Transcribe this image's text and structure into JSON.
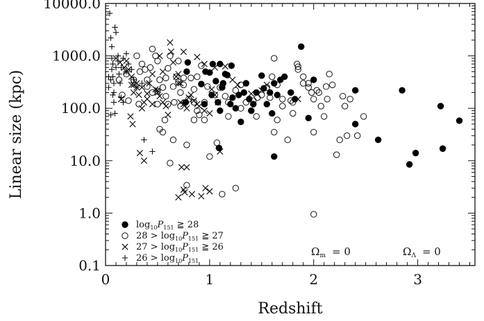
{
  "chart_data": {
    "type": "scatter",
    "title": "",
    "xlabel": "Redshift",
    "ylabel": "Linear size (kpc)",
    "xlim": [
      0,
      3.55
    ],
    "ylim": [
      0.1,
      10000
    ],
    "y_scale": "log",
    "grid": false,
    "x_ticks": [
      {
        "value": 0,
        "label": "0"
      },
      {
        "value": 1,
        "label": "1"
      },
      {
        "value": 2,
        "label": "2"
      },
      {
        "value": 3,
        "label": "3"
      }
    ],
    "y_ticks": [
      {
        "value": 0.1,
        "label": "0.1"
      },
      {
        "value": 1,
        "label": "1.0"
      },
      {
        "value": 10,
        "label": "10.0"
      },
      {
        "value": 100,
        "label": "100.0"
      },
      {
        "value": 1000,
        "label": "1000.0"
      },
      {
        "value": 10000,
        "label": "10000.0"
      }
    ],
    "legend_position": "bottom-left",
    "legend": [
      {
        "marker": "filled-circle",
        "pre": "",
        "sub": "10",
        "var": "P",
        "varsub": "151",
        "post": "≧ 28"
      },
      {
        "marker": "open-circle",
        "pre": "28 >",
        "sub": "10",
        "var": "P",
        "varsub": "151",
        "post": "≧ 27"
      },
      {
        "marker": "cross",
        "pre": "27 >",
        "sub": "10",
        "var": "P",
        "varsub": "151",
        "post": "≧ 26"
      },
      {
        "marker": "plus",
        "pre": "26 >",
        "sub": "10",
        "var": "P",
        "varsub": "151",
        "post": ""
      }
    ],
    "legend_log": "log",
    "annotations": [
      {
        "symbol": "Ω",
        "sub": "m",
        "text": "= 0"
      },
      {
        "symbol": "Ω",
        "sub": "Λ",
        "text": "= 0"
      }
    ],
    "series": [
      {
        "marker": "filled-circle",
        "points": [
          [
            0.79,
            750
          ],
          [
            0.78,
            500
          ],
          [
            0.92,
            290
          ],
          [
            0.96,
            500
          ],
          [
            1.0,
            480
          ],
          [
            1.03,
            700
          ],
          [
            1.08,
            130
          ],
          [
            1.06,
            330
          ],
          [
            1.1,
            700
          ],
          [
            1.15,
            450
          ],
          [
            1.17,
            430
          ],
          [
            1.13,
            300
          ],
          [
            1.22,
            160
          ],
          [
            1.25,
            100
          ],
          [
            1.21,
            650
          ],
          [
            1.28,
            180
          ],
          [
            1.33,
            200
          ],
          [
            1.35,
            300
          ],
          [
            1.38,
            150
          ],
          [
            1.42,
            120
          ],
          [
            1.45,
            200
          ],
          [
            1.5,
            420
          ],
          [
            1.52,
            240
          ],
          [
            1.55,
            120
          ],
          [
            1.58,
            200
          ],
          [
            1.62,
            300
          ],
          [
            1.65,
            180
          ],
          [
            1.68,
            350
          ],
          [
            1.72,
            400
          ],
          [
            1.78,
            200
          ],
          [
            1.82,
            150
          ],
          [
            1.88,
            1500
          ],
          [
            1.95,
            65
          ],
          [
            2.0,
            350
          ],
          [
            2.4,
            220
          ],
          [
            2.4,
            50
          ],
          [
            2.62,
            25
          ],
          [
            2.85,
            220
          ],
          [
            2.92,
            8.5
          ],
          [
            2.98,
            14
          ],
          [
            3.22,
            110
          ],
          [
            3.24,
            17
          ],
          [
            3.4,
            58
          ],
          [
            1.62,
            12
          ],
          [
            1.09,
            17.5
          ],
          [
            0.77,
            130
          ],
          [
            0.95,
            120
          ],
          [
            1.02,
            180
          ],
          [
            1.1,
            90
          ],
          [
            1.2,
            120
          ],
          [
            1.3,
            55
          ],
          [
            1.4,
            90
          ],
          [
            1.6,
            80
          ],
          [
            1.12,
            250
          ]
        ]
      },
      {
        "marker": "open-circle",
        "points": [
          [
            0.13,
            350
          ],
          [
            0.2,
            450
          ],
          [
            0.27,
            350
          ],
          [
            0.33,
            500
          ],
          [
            0.38,
            550
          ],
          [
            0.43,
            600
          ],
          [
            0.45,
            1350
          ],
          [
            0.48,
            1000
          ],
          [
            0.5,
            800
          ],
          [
            0.52,
            350
          ],
          [
            0.55,
            250
          ],
          [
            0.58,
            380
          ],
          [
            0.6,
            580
          ],
          [
            0.62,
            1000
          ],
          [
            0.68,
            400
          ],
          [
            0.7,
            320
          ],
          [
            0.75,
            280
          ],
          [
            0.8,
            150
          ],
          [
            0.85,
            130
          ],
          [
            0.88,
            90
          ],
          [
            0.9,
            75
          ],
          [
            0.92,
            650
          ],
          [
            0.95,
            60
          ],
          [
            1.0,
            12
          ],
          [
            1.07,
            22
          ],
          [
            1.12,
            2.3
          ],
          [
            1.25,
            3
          ],
          [
            1.3,
            280
          ],
          [
            1.35,
            130
          ],
          [
            1.4,
            90
          ],
          [
            1.45,
            70
          ],
          [
            1.5,
            180
          ],
          [
            1.55,
            250
          ],
          [
            1.6,
            400
          ],
          [
            1.62,
            35
          ],
          [
            1.65,
            280
          ],
          [
            1.7,
            150
          ],
          [
            1.75,
            25
          ],
          [
            1.8,
            130
          ],
          [
            1.85,
            550
          ],
          [
            1.9,
            400
          ],
          [
            1.95,
            300
          ],
          [
            2.0,
            35
          ],
          [
            2.0,
            150
          ],
          [
            2.03,
            220
          ],
          [
            2.05,
            200
          ],
          [
            2.07,
            110
          ],
          [
            2.1,
            70
          ],
          [
            2.13,
            150
          ],
          [
            2.15,
            450
          ],
          [
            2.18,
            280
          ],
          [
            2.22,
            13
          ],
          [
            2.25,
            25
          ],
          [
            2.28,
            170
          ],
          [
            2.3,
            110
          ],
          [
            2.32,
            30
          ],
          [
            2.35,
            150
          ],
          [
            2.42,
            30
          ],
          [
            2.48,
            70
          ],
          [
            2.0,
            0.95
          ],
          [
            0.5,
            210
          ],
          [
            0.55,
            35
          ],
          [
            0.62,
            9
          ],
          [
            0.65,
            25
          ],
          [
            0.72,
            110
          ],
          [
            0.78,
            20
          ],
          [
            0.78,
            3.4
          ],
          [
            0.82,
            380
          ],
          [
            0.85,
            60
          ],
          [
            0.7,
            800
          ],
          [
            0.88,
            400
          ],
          [
            1.05,
            180
          ],
          [
            1.1,
            250
          ],
          [
            1.15,
            170
          ],
          [
            1.18,
            130
          ],
          [
            1.3,
            100
          ],
          [
            1.62,
            900
          ],
          [
            1.78,
            140
          ],
          [
            1.85,
            620
          ],
          [
            1.84,
            700
          ],
          [
            1.9,
            300
          ],
          [
            1.98,
            200
          ],
          [
            1.95,
            250
          ],
          [
            2.12,
            260
          ],
          [
            0.3,
            1000
          ],
          [
            0.35,
            700
          ],
          [
            0.4,
            350
          ],
          [
            0.65,
            260
          ],
          [
            0.58,
            170
          ],
          [
            0.45,
            200
          ],
          [
            0.32,
            120
          ],
          [
            0.16,
            180
          ],
          [
            0.22,
            140
          ],
          [
            0.5,
            120
          ],
          [
            0.72,
            200
          ],
          [
            0.98,
            260
          ],
          [
            1.25,
            220
          ],
          [
            1.46,
            160
          ],
          [
            1.7,
            110
          ],
          [
            1.8,
            80
          ],
          [
            1.58,
            160
          ],
          [
            1.42,
            140
          ],
          [
            1.18,
            70
          ],
          [
            0.95,
            130
          ],
          [
            0.85,
            230
          ],
          [
            0.66,
            130
          ],
          [
            0.4,
            260
          ],
          [
            0.75,
            380
          ],
          [
            0.6,
            120
          ],
          [
            0.52,
            40
          ],
          [
            0.57,
            60
          ],
          [
            1.65,
            60
          ]
        ]
      },
      {
        "marker": "cross",
        "points": [
          [
            0.1,
            900
          ],
          [
            0.14,
            750
          ],
          [
            0.18,
            600
          ],
          [
            0.2,
            800
          ],
          [
            0.22,
            550
          ],
          [
            0.25,
            400
          ],
          [
            0.27,
            280
          ],
          [
            0.3,
            250
          ],
          [
            0.32,
            180
          ],
          [
            0.35,
            100
          ],
          [
            0.37,
            130
          ],
          [
            0.4,
            150
          ],
          [
            0.42,
            300
          ],
          [
            0.45,
            450
          ],
          [
            0.48,
            230
          ],
          [
            0.5,
            220
          ],
          [
            0.52,
            170
          ],
          [
            0.55,
            130
          ],
          [
            0.58,
            110
          ],
          [
            0.6,
            75
          ],
          [
            0.62,
            1800
          ],
          [
            0.63,
            1200
          ],
          [
            0.65,
            750
          ],
          [
            0.68,
            400
          ],
          [
            0.7,
            300
          ],
          [
            0.72,
            130
          ],
          [
            0.75,
            120
          ],
          [
            0.78,
            100
          ],
          [
            0.8,
            160
          ],
          [
            0.82,
            180
          ],
          [
            0.85,
            140
          ],
          [
            0.88,
            120
          ],
          [
            0.9,
            110
          ],
          [
            0.95,
            90
          ],
          [
            1.0,
            80
          ],
          [
            1.02,
            230
          ],
          [
            1.05,
            180
          ],
          [
            1.08,
            130
          ],
          [
            1.1,
            15
          ],
          [
            0.33,
            14
          ],
          [
            0.37,
            10
          ],
          [
            0.5,
            200
          ],
          [
            0.52,
            1000
          ],
          [
            0.55,
            500
          ],
          [
            0.7,
            450
          ],
          [
            0.72,
            300
          ],
          [
            0.75,
            1200
          ],
          [
            0.78,
            7.5
          ],
          [
            0.73,
            7.5
          ],
          [
            0.7,
            2
          ],
          [
            0.75,
            2.8
          ],
          [
            0.76,
            2.5
          ],
          [
            0.83,
            2.3
          ],
          [
            0.96,
            3
          ],
          [
            0.92,
            2.1
          ],
          [
            1.0,
            2.6
          ],
          [
            1.15,
            630
          ],
          [
            1.22,
            350
          ],
          [
            1.27,
            280
          ],
          [
            1.4,
            190
          ],
          [
            1.5,
            220
          ],
          [
            1.55,
            280
          ],
          [
            1.85,
            150
          ],
          [
            0.25,
            280
          ],
          [
            0.2,
            500
          ],
          [
            0.15,
            150
          ],
          [
            0.27,
            200
          ],
          [
            0.3,
            300
          ],
          [
            0.24,
            70
          ],
          [
            0.26,
            50
          ],
          [
            0.35,
            250
          ],
          [
            0.45,
            120
          ],
          [
            0.4,
            190
          ],
          [
            0.88,
            950
          ],
          [
            0.95,
            700
          ],
          [
            1.05,
            600
          ]
        ]
      },
      {
        "marker": "plus",
        "points": [
          [
            0.04,
            6500
          ],
          [
            0.05,
            2200
          ],
          [
            0.06,
            1500
          ],
          [
            0.06,
            900
          ],
          [
            0.07,
            700
          ],
          [
            0.07,
            400
          ],
          [
            0.08,
            300
          ],
          [
            0.08,
            200
          ],
          [
            0.08,
            130
          ],
          [
            0.09,
            3500
          ],
          [
            0.1,
            2800
          ],
          [
            0.12,
            1000
          ],
          [
            0.13,
            450
          ],
          [
            0.14,
            300
          ],
          [
            0.15,
            160
          ],
          [
            0.17,
            130
          ],
          [
            0.2,
            500
          ],
          [
            0.22,
            700
          ],
          [
            0.03,
            400
          ],
          [
            0.03,
            250
          ],
          [
            0.05,
            350
          ],
          [
            0.07,
            180
          ],
          [
            0.1,
            600
          ],
          [
            0.12,
            800
          ],
          [
            0.15,
            600
          ],
          [
            0.25,
            550
          ],
          [
            0.27,
            350
          ],
          [
            0.3,
            250
          ],
          [
            0.35,
            300
          ],
          [
            0.37,
            25
          ],
          [
            0.45,
            15
          ],
          [
            0.05,
            75
          ],
          [
            0.09,
            80
          ],
          [
            0.17,
            900
          ],
          [
            0.2,
            1100
          ],
          [
            0.06,
            550
          ]
        ]
      }
    ]
  }
}
